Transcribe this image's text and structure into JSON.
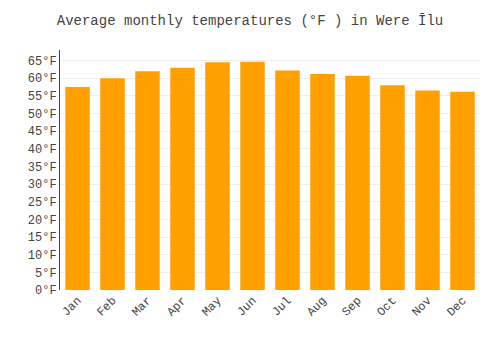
{
  "chart_data": {
    "type": "bar",
    "title": "Average monthly temperatures (°F ) in Were Īlu",
    "categories": [
      "Jan",
      "Feb",
      "Mar",
      "Apr",
      "May",
      "Jun",
      "Jul",
      "Aug",
      "Sep",
      "Oct",
      "Nov",
      "Dec"
    ],
    "values": [
      57.5,
      60.0,
      62.0,
      63.0,
      64.5,
      64.7,
      62.2,
      61.2,
      60.7,
      58.0,
      56.5,
      56.2
    ],
    "color": "#FFA000",
    "ylim": [
      0,
      68
    ],
    "yticks": [
      {
        "value": 0,
        "label": "0°F"
      },
      {
        "value": 5,
        "label": "5°F"
      },
      {
        "value": 10,
        "label": "10°F"
      },
      {
        "value": 15,
        "label": "15°F"
      },
      {
        "value": 20,
        "label": "20°F"
      },
      {
        "value": 25,
        "label": "25°F"
      },
      {
        "value": 30,
        "label": "30°F"
      },
      {
        "value": 35,
        "label": "35°F"
      },
      {
        "value": 40,
        "label": "40°F"
      },
      {
        "value": 45,
        "label": "45°F"
      },
      {
        "value": 50,
        "label": "50°F"
      },
      {
        "value": 55,
        "label": "55°F"
      },
      {
        "value": 60,
        "label": "60°F"
      },
      {
        "value": 65,
        "label": "65°F"
      }
    ],
    "grid": true
  }
}
